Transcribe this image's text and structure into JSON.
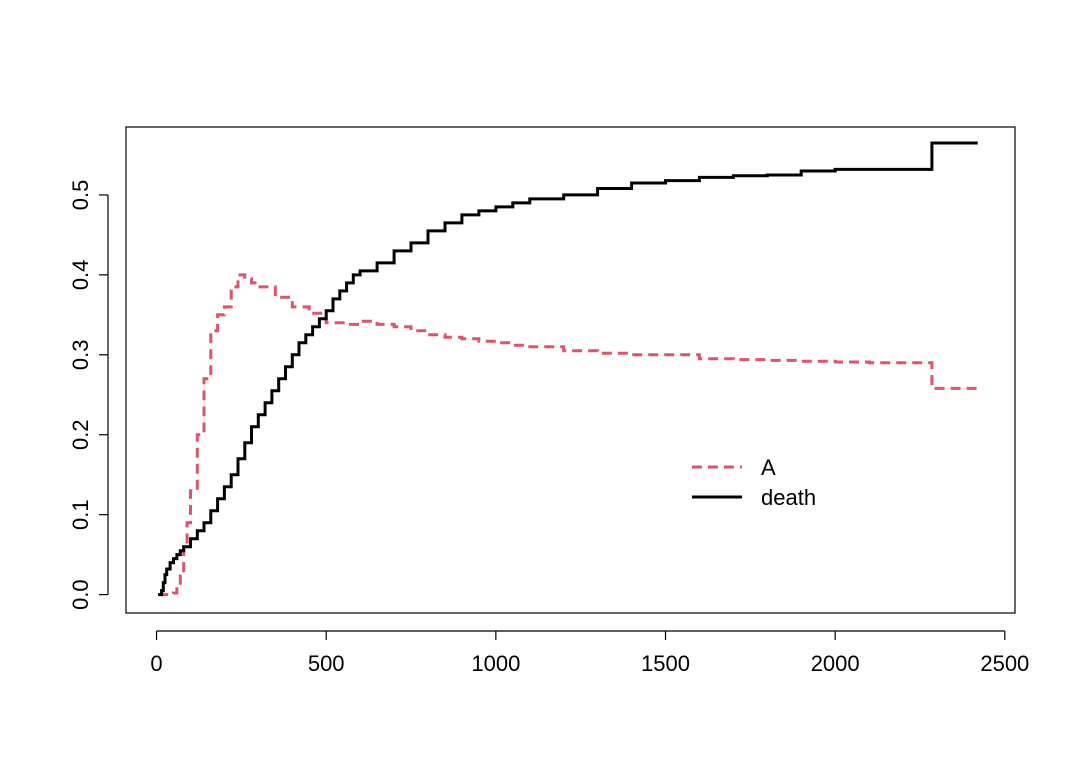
{
  "chart_data": {
    "type": "line",
    "title": "",
    "xlabel": "",
    "ylabel": "",
    "xlim": [
      -90,
      2530
    ],
    "ylim": [
      -0.023,
      0.585
    ],
    "x_ticks": [
      0,
      500,
      1000,
      1500,
      2000,
      2500
    ],
    "y_ticks": [
      0.0,
      0.1,
      0.2,
      0.3,
      0.4,
      0.5
    ],
    "x_tick_labels": [
      "0",
      "500",
      "1000",
      "1500",
      "2000",
      "2500"
    ],
    "y_tick_labels": [
      "0.0",
      "0.1",
      "0.2",
      "0.3",
      "0.4",
      "0.5"
    ],
    "legend": {
      "position": "center-right",
      "entries": [
        "A",
        "death"
      ]
    },
    "series": [
      {
        "name": "A",
        "color": "#DF536B",
        "dash": "dashed",
        "step": true,
        "x": [
          5,
          30,
          50,
          60,
          70,
          80,
          90,
          100,
          120,
          140,
          160,
          180,
          200,
          220,
          240,
          260,
          280,
          300,
          350,
          400,
          450,
          500,
          550,
          600,
          650,
          700,
          750,
          800,
          850,
          900,
          950,
          1000,
          1050,
          1100,
          1200,
          1300,
          1400,
          1500,
          1600,
          1700,
          1800,
          1900,
          2000,
          2100,
          2200,
          2285,
          2420
        ],
        "y": [
          0.0,
          0.0,
          0.002,
          0.01,
          0.03,
          0.06,
          0.09,
          0.13,
          0.2,
          0.27,
          0.33,
          0.35,
          0.36,
          0.385,
          0.4,
          0.395,
          0.39,
          0.385,
          0.372,
          0.36,
          0.352,
          0.34,
          0.338,
          0.342,
          0.338,
          0.335,
          0.33,
          0.325,
          0.322,
          0.32,
          0.317,
          0.315,
          0.312,
          0.31,
          0.305,
          0.302,
          0.3,
          0.3,
          0.295,
          0.294,
          0.293,
          0.292,
          0.291,
          0.29,
          0.29,
          0.258,
          0.258
        ]
      },
      {
        "name": "death",
        "color": "#000000",
        "dash": "solid",
        "step": true,
        "x": [
          5,
          15,
          20,
          25,
          30,
          40,
          50,
          60,
          70,
          80,
          100,
          120,
          140,
          160,
          180,
          200,
          220,
          240,
          260,
          280,
          300,
          320,
          340,
          360,
          380,
          400,
          420,
          440,
          460,
          480,
          500,
          520,
          540,
          560,
          580,
          600,
          650,
          700,
          750,
          800,
          850,
          900,
          950,
          1000,
          1050,
          1100,
          1200,
          1300,
          1400,
          1500,
          1600,
          1700,
          1800,
          1900,
          2000,
          2100,
          2200,
          2285,
          2420
        ],
        "y": [
          0.0,
          0.005,
          0.015,
          0.025,
          0.032,
          0.04,
          0.045,
          0.05,
          0.055,
          0.06,
          0.07,
          0.08,
          0.09,
          0.105,
          0.12,
          0.135,
          0.15,
          0.17,
          0.19,
          0.21,
          0.225,
          0.24,
          0.255,
          0.27,
          0.285,
          0.3,
          0.315,
          0.325,
          0.335,
          0.345,
          0.355,
          0.37,
          0.38,
          0.39,
          0.4,
          0.405,
          0.415,
          0.43,
          0.44,
          0.455,
          0.465,
          0.475,
          0.48,
          0.485,
          0.49,
          0.495,
          0.5,
          0.508,
          0.515,
          0.518,
          0.522,
          0.524,
          0.525,
          0.53,
          0.532,
          0.532,
          0.532,
          0.565,
          0.565
        ]
      }
    ]
  }
}
